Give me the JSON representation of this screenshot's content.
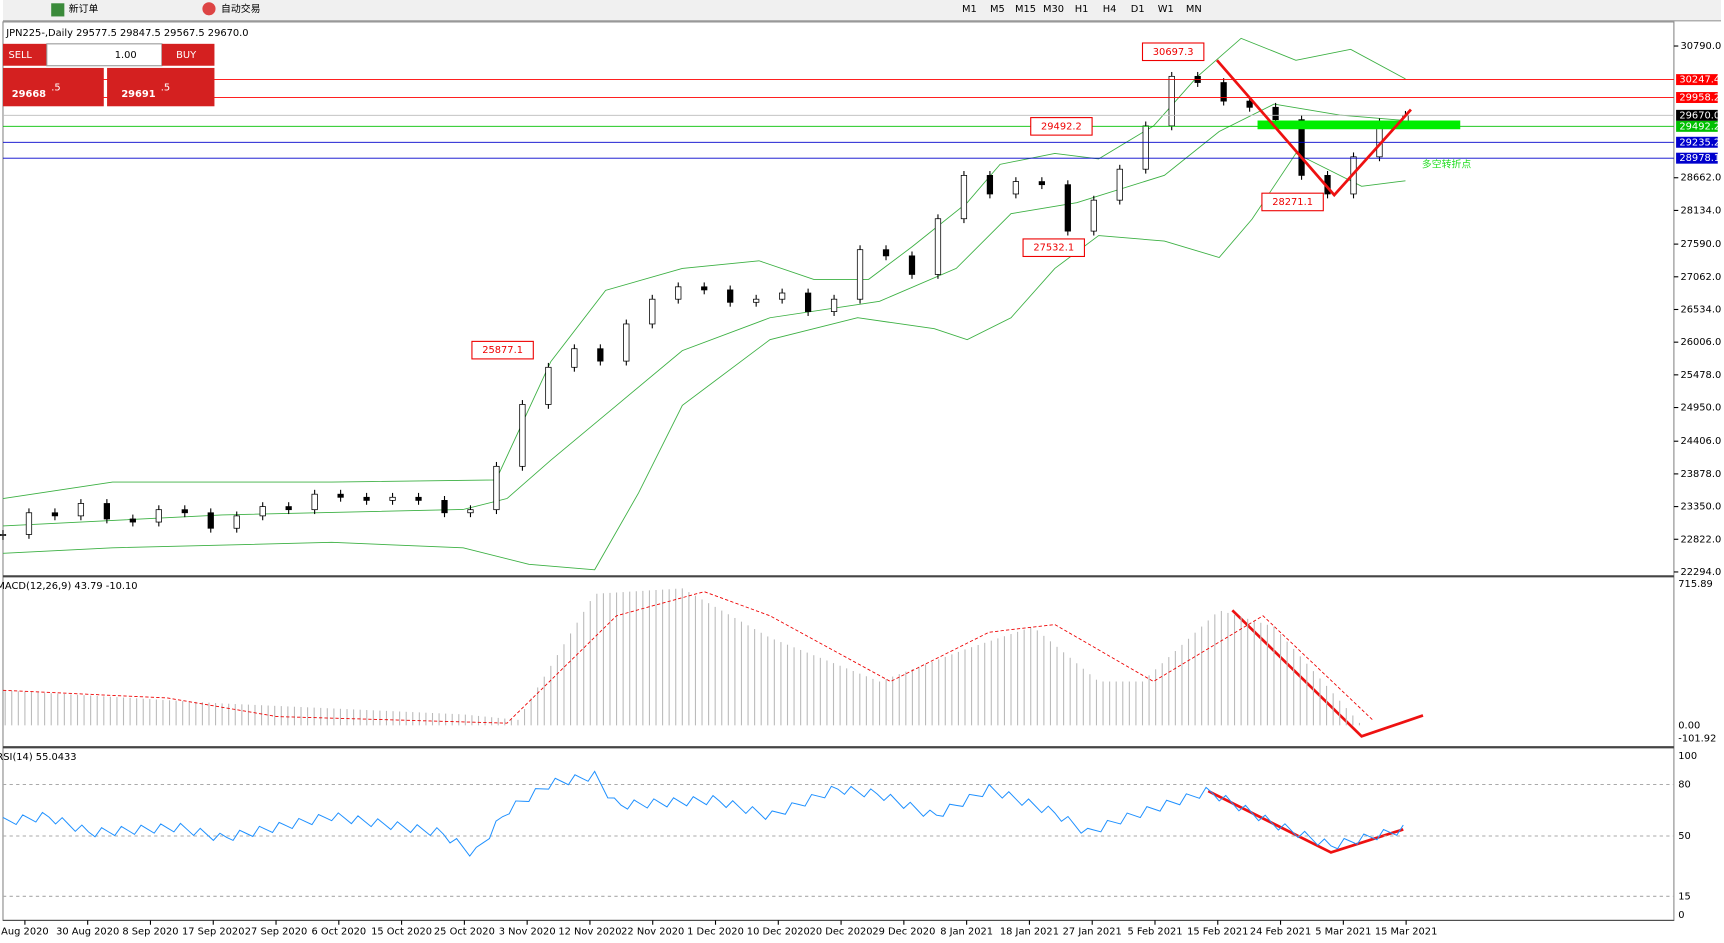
{
  "toolbar": {
    "new_order": "新订单",
    "auto_trading": "自动交易",
    "timeframes": [
      "M1",
      "M5",
      "M15",
      "M30",
      "H1",
      "H4",
      "D1",
      "W1",
      "MN"
    ]
  },
  "chart": {
    "header": "JPN225-,Daily  29577.5 29847.5 29567.5 29670.0",
    "ylim": [
      22241,
      31144
    ],
    "price_ticks": [
      {
        "value": 30790,
        "label": "30790.0"
      },
      {
        "value": 28662,
        "label": "28662.0"
      },
      {
        "value": 28134,
        "label": "28134.0"
      },
      {
        "value": 27590,
        "label": "27590.0"
      },
      {
        "value": 27062,
        "label": "27062.0"
      },
      {
        "value": 26534,
        "label": "26534.0"
      },
      {
        "value": 26006,
        "label": "26006.0"
      },
      {
        "value": 25478,
        "label": "25478.0"
      },
      {
        "value": 24950,
        "label": "24950.0"
      },
      {
        "value": 24406,
        "label": "24406.0"
      },
      {
        "value": 23878,
        "label": "23878.0"
      },
      {
        "value": 23350,
        "label": "23350.0"
      },
      {
        "value": 22822,
        "label": "22822.0"
      },
      {
        "value": 22294,
        "label": "22294.0"
      }
    ],
    "levels": [
      {
        "value": 30247.4,
        "label": "30247.4",
        "color": "#ff0000"
      },
      {
        "value": 29958.2,
        "label": "29958.2",
        "color": "#ff0000"
      },
      {
        "value": 29670,
        "label": "29670.0",
        "color": "#000000"
      },
      {
        "value": 29492.2,
        "label": "29492.2",
        "color": "#00c000"
      },
      {
        "value": 29235.2,
        "label": "29235.2",
        "color": "#0000cc"
      },
      {
        "value": 28978.1,
        "label": "28978.1",
        "color": "#0000cc"
      }
    ],
    "annotations": [
      {
        "value": 30697.3,
        "label": "30697.3"
      },
      {
        "value": 29492.2,
        "label": "29492.2"
      },
      {
        "value": 28271.1,
        "label": "28271.1"
      },
      {
        "value": 27532.1,
        "label": "27532.1"
      },
      {
        "value": 25877.1,
        "label": "25877.1"
      }
    ],
    "note": "多空转折点",
    "closes": [
      22900,
      23250,
      23200,
      23400,
      23150,
      23100,
      23300,
      23250,
      23000,
      23200,
      23350,
      23300,
      23550,
      23500,
      23450,
      23500,
      23450,
      23250,
      23300,
      24000,
      25000,
      25600,
      25900,
      25700,
      26300,
      26700,
      26900,
      26850,
      26650,
      26700,
      26800,
      26500,
      26700,
      27500,
      27400,
      27100,
      28000,
      28700,
      28400,
      28600,
      28550,
      27800,
      28300,
      28800,
      29500,
      30300,
      30200,
      29900,
      29800,
      29600,
      28700,
      28400,
      29000,
      29550,
      29670
    ],
    "dates": [
      "Aug 2020",
      "30 Aug 2020",
      "8 Sep 2020",
      "17 Sep 2020",
      "27 Sep 2020",
      "6 Oct 2020",
      "15 Oct 2020",
      "25 Oct 2020",
      "3 Nov 2020",
      "12 Nov 2020",
      "22 Nov 2020",
      "1 Dec 2020",
      "10 Dec 2020",
      "20 Dec 2020",
      "29 Dec 2020",
      "8 Jan 2021",
      "18 Jan 2021",
      "27 Jan 2021",
      "5 Feb 2021",
      "15 Feb 2021",
      "24 Feb 2021",
      "5 Mar 2021",
      "15 Mar 2021"
    ]
  },
  "trade_panel": {
    "sell": "SELL",
    "buy": "BUY",
    "volume": "1.00",
    "sell_big": "29668",
    "sell_small": ".5",
    "buy_big": "29691",
    "buy_small": ".5"
  },
  "macd": {
    "label": "MACD(12,26,9) 43.79 -10.10",
    "ticks": [
      "715.89",
      "0.00",
      "-101.92"
    ]
  },
  "rsi": {
    "label": "RSI(14) 55.0433",
    "ticks": [
      "100",
      "80",
      "50",
      "15",
      "0"
    ]
  }
}
